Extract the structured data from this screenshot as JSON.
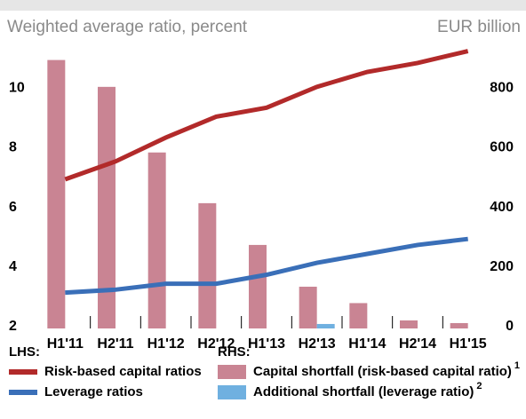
{
  "chart_data": {
    "type": "combo",
    "y_label": "Weighted average ratio, percent",
    "y2_label": "EUR billion",
    "categories": [
      "H1'11",
      "H2'11",
      "H1'12",
      "H2'12",
      "H1'13",
      "H2'13",
      "H1'14",
      "H2'14",
      "H1'15"
    ],
    "ylim": [
      2,
      12
    ],
    "yticks": [
      2,
      4,
      6,
      8,
      10
    ],
    "y2lim": [
      0,
      1000
    ],
    "y2ticks": [
      0,
      200,
      400,
      600,
      800
    ],
    "legend_groups": [
      "LHS:",
      "RHS:"
    ],
    "series": [
      {
        "name": "Risk-based capital ratios",
        "type": "line",
        "axis": "y",
        "group": 0,
        "color": "#b22a2a",
        "values": [
          7.0,
          7.6,
          8.4,
          9.1,
          9.4,
          10.1,
          10.6,
          10.9,
          11.3
        ]
      },
      {
        "name": "Leverage ratios",
        "type": "line",
        "axis": "y",
        "group": 0,
        "color": "#3a6fb8",
        "values": [
          3.2,
          3.3,
          3.5,
          3.5,
          3.8,
          4.2,
          4.5,
          4.8,
          5.0
        ]
      },
      {
        "name": "Capital shortfall (risk-based capital ratio)",
        "footnote": "1",
        "type": "bar",
        "axis": "y2",
        "group": 1,
        "color": "#c98493",
        "values": [
          900,
          810,
          590,
          420,
          280,
          140,
          85,
          27,
          18
        ]
      },
      {
        "name": "Additional shortfall (leverage ratio)",
        "footnote": "2",
        "type": "bar",
        "axis": "y2",
        "group": 1,
        "color": "#6fb0e0",
        "values": [
          null,
          null,
          null,
          null,
          null,
          15,
          null,
          null,
          null
        ]
      }
    ]
  }
}
